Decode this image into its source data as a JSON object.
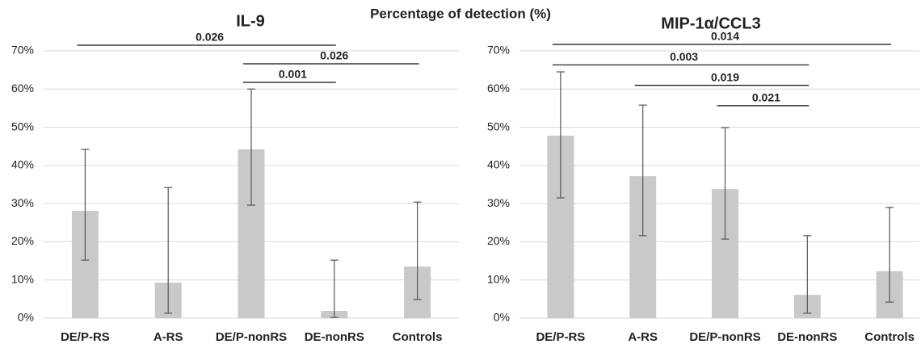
{
  "title": "Percentage of detection (%)",
  "chart_data": [
    {
      "type": "bar",
      "title": "IL-9",
      "color": "#c9c9c9",
      "categories": [
        "DE/P-RS",
        "A-RS",
        "DE/P-nonRS",
        "DE-nonRS",
        "Controls"
      ],
      "values": [
        28.1,
        9.3,
        44.2,
        1.9,
        13.5
      ],
      "lower": [
        15.2,
        1.3,
        29.6,
        0.2,
        4.9
      ],
      "upper": [
        44.2,
        34.2,
        60.0,
        15.2,
        30.4
      ],
      "ylim": [
        0,
        70
      ],
      "yticks": [
        {
          "value": 0,
          "label": "0%"
        },
        {
          "value": 10,
          "label": "10%"
        },
        {
          "value": 20,
          "label": "20%"
        },
        {
          "value": 30,
          "label": "30%"
        },
        {
          "value": 40,
          "label": "40%"
        },
        {
          "value": 50,
          "label": "50%"
        },
        {
          "value": 60,
          "label": "60%"
        },
        {
          "value": 70,
          "label": "70%"
        }
      ],
      "grid": true,
      "comparisons": [
        {
          "label": "0.026",
          "categories": [
            "DE/P-RS",
            "DE-nonRS"
          ]
        },
        {
          "label": "0.026",
          "categories": [
            "DE/P-nonRS",
            "Controls"
          ]
        },
        {
          "label": "0.001",
          "categories": [
            "DE/P-nonRS",
            "DE-nonRS"
          ]
        }
      ]
    },
    {
      "type": "bar",
      "title": "MIP-1α/CCL3",
      "color": "#c9c9c9",
      "categories": [
        "DE/P-RS",
        "A-RS",
        "DE/P-nonRS",
        "DE-nonRS",
        "Controls"
      ],
      "values": [
        47.8,
        37.2,
        33.8,
        6.1,
        12.3
      ],
      "lower": [
        31.5,
        21.6,
        20.7,
        1.3,
        4.2
      ],
      "upper": [
        64.5,
        55.8,
        49.9,
        21.6,
        29.0
      ],
      "ylim": [
        0,
        70
      ],
      "yticks": [
        {
          "value": 0,
          "label": "0%"
        },
        {
          "value": 10,
          "label": "10%"
        },
        {
          "value": 20,
          "label": "20%"
        },
        {
          "value": 30,
          "label": "30%"
        },
        {
          "value": 40,
          "label": "40%"
        },
        {
          "value": 50,
          "label": "50%"
        },
        {
          "value": 60,
          "label": "60%"
        },
        {
          "value": 70,
          "label": "70%"
        }
      ],
      "grid": true,
      "comparisons": [
        {
          "label": "0.014",
          "categories": [
            "DE/P-RS",
            "Controls"
          ]
        },
        {
          "label": "0.003",
          "categories": [
            "DE/P-RS",
            "DE-nonRS"
          ]
        },
        {
          "label": "0.019",
          "categories": [
            "A-RS",
            "DE-nonRS"
          ]
        },
        {
          "label": "0.021",
          "categories": [
            "DE/P-nonRS",
            "DE-nonRS"
          ]
        }
      ]
    }
  ]
}
